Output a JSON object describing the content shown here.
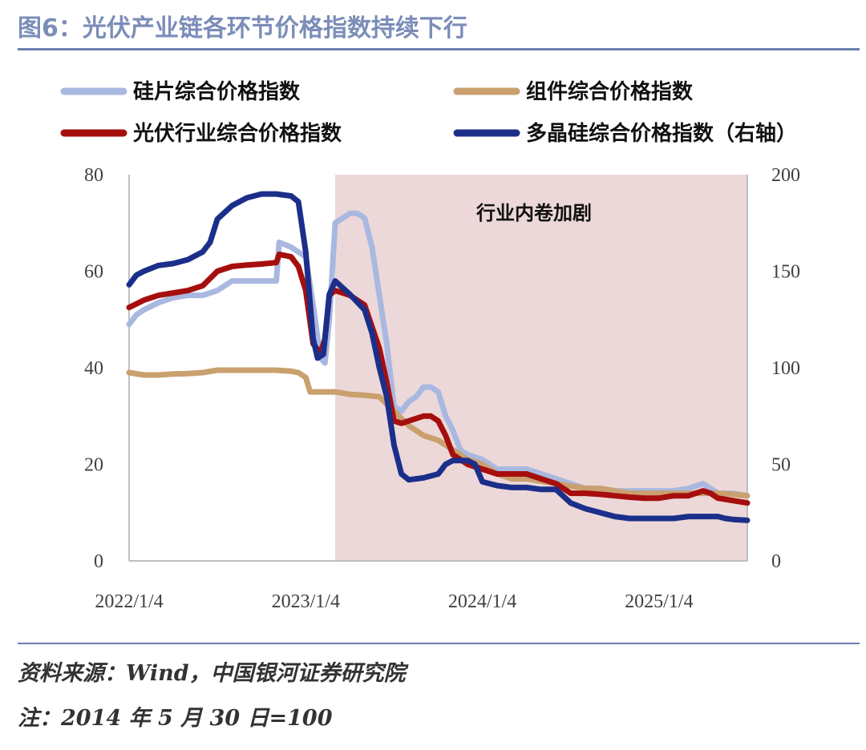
{
  "header": {
    "title": "图6：光伏产业链各环节价格指数持续下行"
  },
  "footer": {
    "source": "资料来源：Wind，中国银河证券研究院",
    "note": "注：2014 年 5 月 30 日=100"
  },
  "chart_data": {
    "type": "line",
    "title": "图6：光伏产业链各环节价格指数持续下行",
    "x_tick_labels": [
      "2022/1/4",
      "2023/1/4",
      "2024/1/4",
      "2025/1/4"
    ],
    "x_tick_values": [
      0,
      12,
      24,
      36
    ],
    "x_range": [
      0,
      42
    ],
    "y_left": {
      "min": 0,
      "max": 80,
      "ticks": [
        0,
        20,
        40,
        60,
        80
      ]
    },
    "y_right": {
      "min": 0,
      "max": 200,
      "ticks": [
        0,
        50,
        100,
        150,
        200
      ]
    },
    "shaded_region": {
      "x_start": 14.0,
      "x_end": 42,
      "label": "行业内卷加剧",
      "color": "#ecd8d8"
    },
    "series": [
      {
        "name": "硅片综合价格指数",
        "color": "#a9b8e0",
        "axis": "left",
        "points": [
          [
            0,
            49
          ],
          [
            0.5,
            51
          ],
          [
            1,
            52
          ],
          [
            2,
            53.5
          ],
          [
            3,
            54.5
          ],
          [
            4,
            55
          ],
          [
            5,
            55
          ],
          [
            6,
            56
          ],
          [
            7,
            58
          ],
          [
            8,
            58
          ],
          [
            9,
            58
          ],
          [
            10,
            58
          ],
          [
            10.2,
            66
          ],
          [
            11,
            65
          ],
          [
            11.5,
            64
          ],
          [
            12,
            63
          ],
          [
            12.5,
            53
          ],
          [
            13,
            42
          ],
          [
            13.3,
            41
          ],
          [
            13.6,
            50
          ],
          [
            14,
            70
          ],
          [
            15,
            72
          ],
          [
            15.5,
            72
          ],
          [
            16,
            71
          ],
          [
            16.5,
            65
          ],
          [
            17,
            55
          ],
          [
            17.5,
            45
          ],
          [
            18,
            32
          ],
          [
            18.5,
            31
          ],
          [
            19,
            33
          ],
          [
            19.5,
            34
          ],
          [
            20,
            36
          ],
          [
            20.5,
            36
          ],
          [
            21,
            35
          ],
          [
            21.5,
            30
          ],
          [
            22,
            27
          ],
          [
            22.5,
            23
          ],
          [
            23,
            22
          ],
          [
            24,
            21
          ],
          [
            25,
            19
          ],
          [
            26,
            19
          ],
          [
            27,
            19
          ],
          [
            28,
            18
          ],
          [
            29,
            17
          ],
          [
            30,
            16
          ],
          [
            31,
            15
          ],
          [
            32,
            15
          ],
          [
            33,
            14.5
          ],
          [
            34,
            14.5
          ],
          [
            35,
            14.5
          ],
          [
            36,
            14.5
          ],
          [
            37,
            14.5
          ],
          [
            38,
            15
          ],
          [
            39,
            16
          ],
          [
            39.5,
            15
          ],
          [
            40,
            14
          ],
          [
            41,
            14
          ],
          [
            42,
            13.5
          ]
        ]
      },
      {
        "name": "组件综合价格指数",
        "color": "#c9a06e",
        "axis": "left",
        "points": [
          [
            0,
            39
          ],
          [
            1,
            38.5
          ],
          [
            2,
            38.5
          ],
          [
            3,
            38.7
          ],
          [
            4,
            38.8
          ],
          [
            5,
            39
          ],
          [
            6,
            39.5
          ],
          [
            7,
            39.5
          ],
          [
            8,
            39.5
          ],
          [
            9,
            39.5
          ],
          [
            10,
            39.5
          ],
          [
            11,
            39.3
          ],
          [
            11.5,
            39
          ],
          [
            12,
            38
          ],
          [
            12.3,
            35
          ],
          [
            13,
            35
          ],
          [
            14,
            35
          ],
          [
            15,
            34.5
          ],
          [
            16,
            34.3
          ],
          [
            17,
            34
          ],
          [
            18,
            31
          ],
          [
            19,
            28
          ],
          [
            19.5,
            27
          ],
          [
            20,
            26
          ],
          [
            21,
            25
          ],
          [
            22,
            23
          ],
          [
            23,
            21
          ],
          [
            24,
            20
          ],
          [
            25,
            18
          ],
          [
            26,
            17
          ],
          [
            27,
            17
          ],
          [
            28,
            16.5
          ],
          [
            29,
            16
          ],
          [
            30,
            15.5
          ],
          [
            31,
            15
          ],
          [
            32,
            15
          ],
          [
            33,
            14.5
          ],
          [
            34,
            14
          ],
          [
            35,
            14
          ],
          [
            36,
            14
          ],
          [
            37,
            14
          ],
          [
            38,
            14
          ],
          [
            39,
            14
          ],
          [
            40,
            14
          ],
          [
            41,
            13.8
          ],
          [
            42,
            13.5
          ]
        ]
      },
      {
        "name": "光伏行业综合价格指数",
        "color": "#a60e0e",
        "axis": "left",
        "points": [
          [
            0,
            52.5
          ],
          [
            1,
            54
          ],
          [
            2,
            55
          ],
          [
            3,
            55.5
          ],
          [
            4,
            56
          ],
          [
            5,
            57
          ],
          [
            6,
            60
          ],
          [
            7,
            61
          ],
          [
            8,
            61.3
          ],
          [
            9,
            61.5
          ],
          [
            10,
            61.8
          ],
          [
            10.2,
            63.5
          ],
          [
            11,
            63
          ],
          [
            11.5,
            61
          ],
          [
            12,
            56
          ],
          [
            12.5,
            45
          ],
          [
            13,
            43
          ],
          [
            13.3,
            46
          ],
          [
            13.6,
            55
          ],
          [
            14,
            56
          ],
          [
            15,
            55
          ],
          [
            16,
            53
          ],
          [
            17,
            44
          ],
          [
            17.5,
            37
          ],
          [
            18,
            29
          ],
          [
            18.5,
            28.5
          ],
          [
            19,
            29
          ],
          [
            19.5,
            29.5
          ],
          [
            20,
            30
          ],
          [
            20.5,
            30
          ],
          [
            21,
            29
          ],
          [
            21.5,
            26
          ],
          [
            22,
            22
          ],
          [
            22.5,
            21
          ],
          [
            23,
            20
          ],
          [
            24,
            19
          ],
          [
            25,
            18
          ],
          [
            26,
            18
          ],
          [
            27,
            18
          ],
          [
            28,
            17
          ],
          [
            29,
            16
          ],
          [
            30,
            14
          ],
          [
            31,
            14
          ],
          [
            32,
            13.8
          ],
          [
            33,
            13.5
          ],
          [
            34,
            13.2
          ],
          [
            35,
            13
          ],
          [
            36,
            13
          ],
          [
            37,
            13.5
          ],
          [
            38,
            13.5
          ],
          [
            39,
            14.5
          ],
          [
            39.5,
            14
          ],
          [
            40,
            13
          ],
          [
            41,
            12.5
          ],
          [
            42,
            12
          ]
        ]
      },
      {
        "name": "多晶硅综合价格指数（右轴）",
        "color": "#1b2f8a",
        "axis": "right",
        "points": [
          [
            0,
            143
          ],
          [
            0.5,
            148
          ],
          [
            1,
            150
          ],
          [
            2,
            153
          ],
          [
            3,
            154
          ],
          [
            4,
            156
          ],
          [
            5,
            160
          ],
          [
            5.5,
            165
          ],
          [
            6,
            177
          ],
          [
            7,
            184
          ],
          [
            8,
            188
          ],
          [
            9,
            190
          ],
          [
            10,
            190
          ],
          [
            11,
            189
          ],
          [
            11.5,
            186
          ],
          [
            12,
            160
          ],
          [
            12.5,
            115
          ],
          [
            12.8,
            105
          ],
          [
            13.2,
            107
          ],
          [
            13.6,
            138
          ],
          [
            14,
            145
          ],
          [
            15,
            138
          ],
          [
            16,
            130
          ],
          [
            16.5,
            118
          ],
          [
            17,
            100
          ],
          [
            17.5,
            85
          ],
          [
            18,
            60
          ],
          [
            18.5,
            45
          ],
          [
            19,
            42
          ],
          [
            20,
            43
          ],
          [
            21,
            45
          ],
          [
            21.5,
            50
          ],
          [
            22,
            52
          ],
          [
            23,
            52
          ],
          [
            23.5,
            50
          ],
          [
            24,
            41
          ],
          [
            25,
            39
          ],
          [
            26,
            38
          ],
          [
            27,
            38
          ],
          [
            28,
            37
          ],
          [
            29,
            37
          ],
          [
            30,
            30
          ],
          [
            31,
            27
          ],
          [
            32,
            25
          ],
          [
            33,
            23
          ],
          [
            34,
            22
          ],
          [
            35,
            22
          ],
          [
            36,
            22
          ],
          [
            37,
            22
          ],
          [
            38,
            23
          ],
          [
            39,
            23
          ],
          [
            40,
            23
          ],
          [
            40.5,
            22
          ],
          [
            41,
            21.5
          ],
          [
            42,
            21
          ]
        ]
      }
    ]
  }
}
